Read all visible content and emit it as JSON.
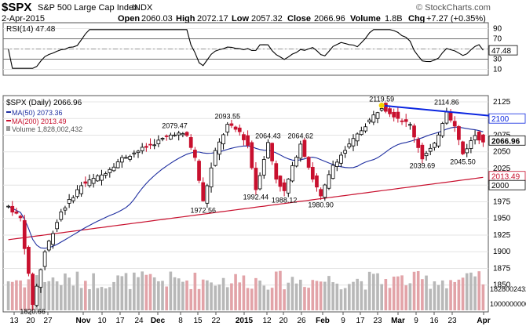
{
  "header": {
    "symbol": "$SPX",
    "name": "S&P 500 Large Cap Index",
    "exchange": "INDX",
    "date": "2-Apr-2015",
    "open_label": "Open",
    "open": "2060.03",
    "high_label": "High",
    "high": "2072.17",
    "low_label": "Low",
    "low": "2057.32",
    "close_label": "Close",
    "close": "2066.96",
    "volume_label": "Volume",
    "volume": "1.8B",
    "chg_label": "Chg",
    "chg": "+7.27 (+0.35%)",
    "watermark": "© StockCharts.com"
  },
  "rsi": {
    "label": "RSI(14) 47.48",
    "current": 47.48,
    "ticks": [
      90,
      70,
      50,
      30,
      10
    ],
    "overbought": 70,
    "oversold": 30,
    "color": "#000000"
  },
  "legend": {
    "price": "$SPX (Daily) 2066.96",
    "ma50": "MA(50) 2073.36",
    "ma200": "MA(200) 2013.49",
    "volume": "Volume 1,828,002,432"
  },
  "colors": {
    "up": "#000000",
    "down": "#c8102e",
    "ma50": "#1f2fa0",
    "ma200": "#c8102e",
    "trendline": "#0a25e0",
    "vol_up": "#b8b8b8",
    "vol_down": "#e2a3a8",
    "panel": "#ffffff",
    "grid": "#e4e4e4",
    "marker": "#f5d000"
  },
  "chart_data": {
    "type": "candlestick",
    "y_ticks": [
      2125,
      2100,
      2075,
      2050,
      2025,
      2000,
      1975,
      1950,
      1925,
      1900,
      1875,
      1850
    ],
    "ylim": [
      1812,
      2132
    ],
    "x_labels": [
      "13",
      "20",
      "27",
      "Nov",
      "10",
      "17",
      "24",
      "Dec",
      "8",
      "15",
      "22",
      "2015",
      "12",
      "20",
      "26",
      "Feb",
      "9",
      "17",
      "23",
      "Mar",
      "9",
      "16",
      "23",
      "Apr"
    ],
    "price_tags": [
      {
        "text": "2100",
        "value": 2100
      },
      {
        "text": "2066.96",
        "value": 2066.96
      },
      {
        "text": "2013.49",
        "value": 2013.49
      },
      {
        "text": "2000",
        "value": 2000
      }
    ],
    "volume_tags": [
      "1828002432",
      "1000000000"
    ],
    "annotations": [
      {
        "text": "1820.66",
        "value": 1820.66,
        "index": 6,
        "pos": "below"
      },
      {
        "text": "2079.47",
        "value": 2079.47,
        "index": 41,
        "pos": "above"
      },
      {
        "text": "2093.55",
        "value": 2093.55,
        "index": 54,
        "pos": "above"
      },
      {
        "text": "1972.56",
        "value": 1972.56,
        "index": 48,
        "pos": "below"
      },
      {
        "text": "2064.43",
        "value": 2064.43,
        "index": 64,
        "pos": "above"
      },
      {
        "text": "1992.44",
        "value": 1992.44,
        "index": 61,
        "pos": "below"
      },
      {
        "text": "2064.62",
        "value": 2064.62,
        "index": 72,
        "pos": "above"
      },
      {
        "text": "1988.12",
        "value": 1988.12,
        "index": 68,
        "pos": "below"
      },
      {
        "text": "1980.90",
        "value": 1980.9,
        "index": 77,
        "pos": "below"
      },
      {
        "text": "2119.59",
        "value": 2119.59,
        "index": 92,
        "pos": "above"
      },
      {
        "text": "2039.69",
        "value": 2039.69,
        "index": 102,
        "pos": "below"
      },
      {
        "text": "2114.86",
        "value": 2114.86,
        "index": 108,
        "pos": "above"
      },
      {
        "text": "2045.50",
        "value": 2045.5,
        "index": 112,
        "pos": "below"
      }
    ]
  }
}
